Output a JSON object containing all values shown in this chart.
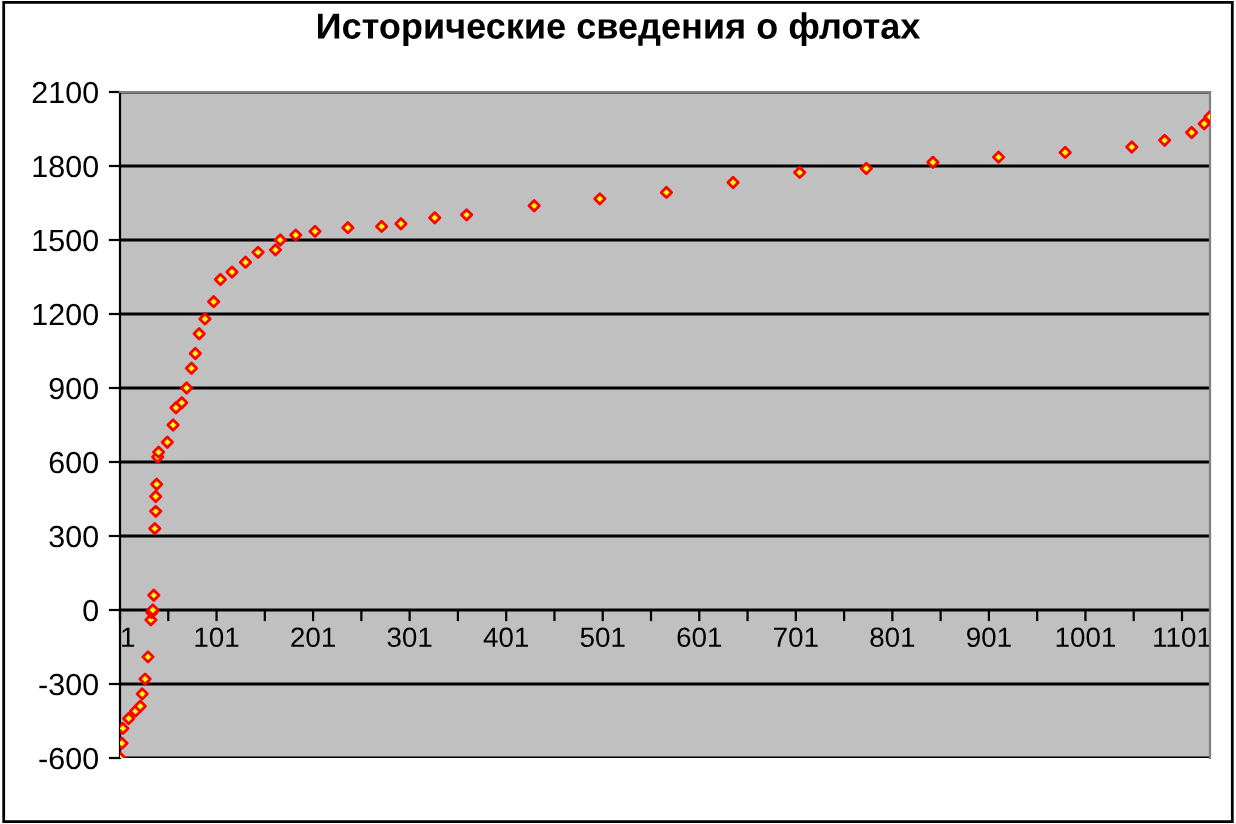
{
  "chart_data": {
    "type": "scatter",
    "title": "Исторические сведения о флотах",
    "x": [
      1,
      3,
      4,
      10,
      17,
      22,
      24,
      27,
      30,
      33,
      34,
      35,
      36,
      37,
      38,
      38,
      39,
      40,
      41,
      50,
      56,
      59,
      65,
      70,
      75,
      79,
      83,
      89,
      98,
      105,
      117,
      131,
      144,
      162,
      167,
      183,
      203,
      237,
      272,
      292,
      327,
      360,
      430,
      498,
      567,
      636,
      705,
      774,
      843,
      911,
      980,
      1049,
      1083,
      1111,
      1124,
      1130
    ],
    "series": [
      {
        "color": "#ff0000",
        "values": [
          -600,
          -540,
          -480,
          -440,
          -410,
          -390,
          -340,
          -280,
          -190,
          -40,
          -10,
          0,
          60,
          330,
          400,
          460,
          510,
          620,
          640,
          680,
          750,
          820,
          840,
          900,
          980,
          1040,
          1120,
          1180,
          1250,
          1340,
          1370,
          1410,
          1450,
          1460,
          1500,
          1520,
          1535,
          1550,
          1555,
          1566,
          1590,
          1602,
          1639,
          1667,
          1693,
          1733,
          1774,
          1790,
          1815,
          1836,
          1855,
          1877,
          1904,
          1936,
          1971,
          2000
        ]
      }
    ],
    "xlim": [
      1,
      1130
    ],
    "xticks": [
      1,
      {
        "value": 51,
        "label": null
      },
      101,
      {
        "value": 151,
        "label": null
      },
      201,
      {
        "value": 251,
        "label": null
      },
      301,
      {
        "value": 351,
        "label": null
      },
      401,
      {
        "value": 451,
        "label": null
      },
      501,
      {
        "value": 551,
        "label": null
      },
      601,
      {
        "value": 651,
        "label": null
      },
      701,
      {
        "value": 751,
        "label": null
      },
      801,
      {
        "value": 851,
        "label": null
      },
      901,
      {
        "value": 951,
        "label": null
      },
      1001,
      {
        "value": 1051,
        "label": null
      },
      1101
    ],
    "ylim": [
      -600,
      2100
    ],
    "yticks": [
      -600,
      -300,
      0,
      300,
      600,
      900,
      1200,
      1500,
      1800,
      2100
    ],
    "grid": "y",
    "marker": "diamond"
  }
}
